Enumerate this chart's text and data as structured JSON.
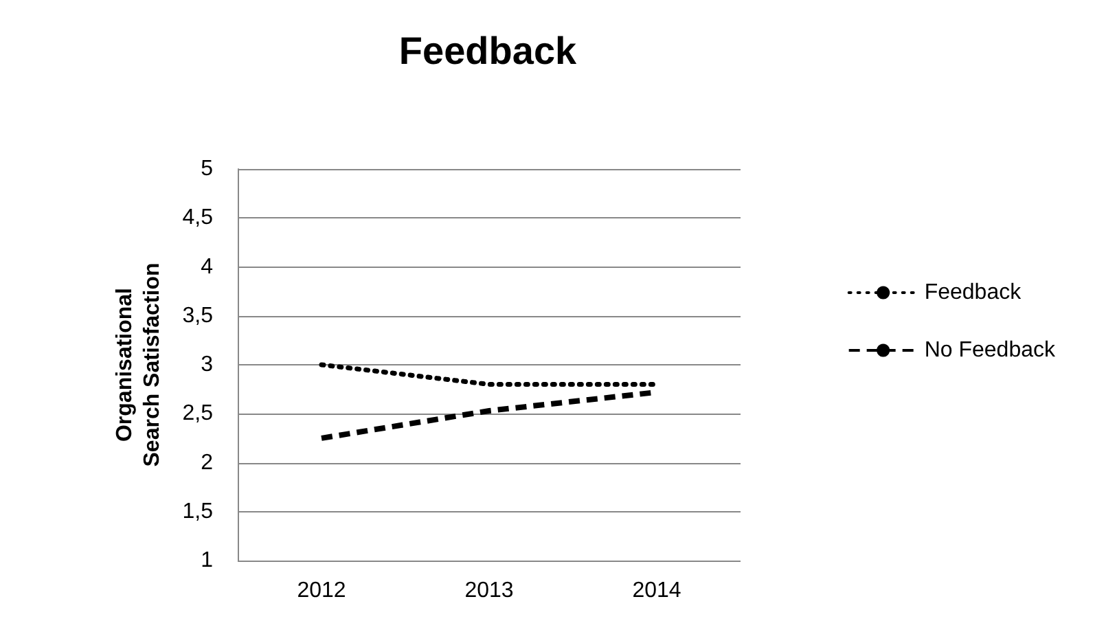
{
  "chart_data": {
    "type": "line",
    "title": "Feedback",
    "ylabel": "Organisational Search Satisfaction",
    "categories": [
      "2012",
      "2013",
      "2014"
    ],
    "series": [
      {
        "name": "Feedback",
        "color": "#000000",
        "values": [
          3.0,
          2.8,
          2.8
        ],
        "line_style": "dotted"
      },
      {
        "name": "No Feedback",
        "color": "#000000",
        "values": [
          2.25,
          2.53,
          2.72
        ],
        "line_style": "dashed"
      }
    ],
    "ylim": [
      1,
      5
    ],
    "yticks": [
      1,
      {
        "value": 1.5,
        "label": "1,5"
      },
      2,
      {
        "value": 2.5,
        "label": "2,5"
      },
      3,
      {
        "value": 3.5,
        "label": "3,5"
      },
      4,
      {
        "value": 4.5,
        "label": "4,5"
      },
      5
    ],
    "grid": "y",
    "legend": "right",
    "marker": "none"
  }
}
